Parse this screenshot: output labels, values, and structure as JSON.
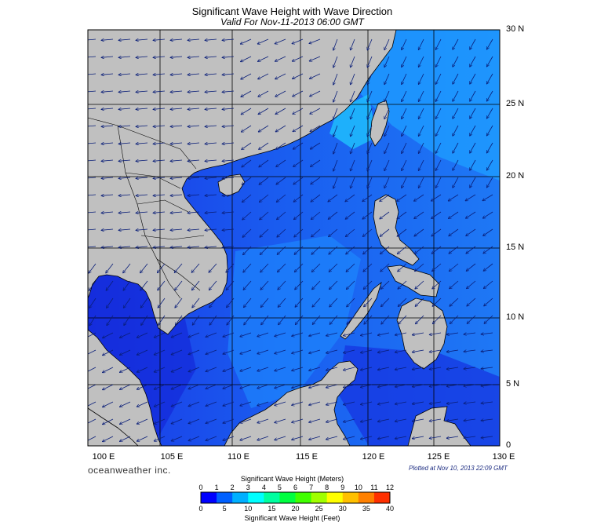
{
  "title": "Significant Wave Height with Wave Direction",
  "subtitle": "Valid For Nov-11-2013 06:00 GMT",
  "brand": "oceanweather inc.",
  "plotted": "Plotted at Nov 10, 2013 22:09 GMT",
  "lat_labels": [
    "30 N",
    "25 N",
    "20 N",
    "15 N",
    "10 N",
    "5 N",
    "0"
  ],
  "lon_labels": [
    "100 E",
    "105 E",
    "110 E",
    "115 E",
    "120 E",
    "125 E",
    "130 E"
  ],
  "colorbar": {
    "title_top": "Significant Wave Height (Meters)",
    "title_bottom": "Significant Wave Height (Feet)",
    "meters_ticks": [
      "0",
      "1",
      "2",
      "3",
      "4",
      "5",
      "6",
      "7",
      "8",
      "9",
      "10",
      "11",
      "12"
    ],
    "feet_ticks": [
      "0",
      "5",
      "10",
      "15",
      "20",
      "25",
      "30",
      "35",
      "40"
    ],
    "colors": [
      "#0000ff",
      "#0060ff",
      "#00b0ff",
      "#00ffff",
      "#00ffa0",
      "#00ff40",
      "#40ff00",
      "#a0ff00",
      "#ffff00",
      "#ffc000",
      "#ff8000",
      "#ff3000"
    ]
  },
  "colors": {
    "land": "#c0c0c0",
    "sea_low": "#1e3cf0",
    "sea_mid": "#1e64f5",
    "sea_high": "#1e96fa",
    "arrow": "#0a1e78",
    "grid": "#000000"
  }
}
